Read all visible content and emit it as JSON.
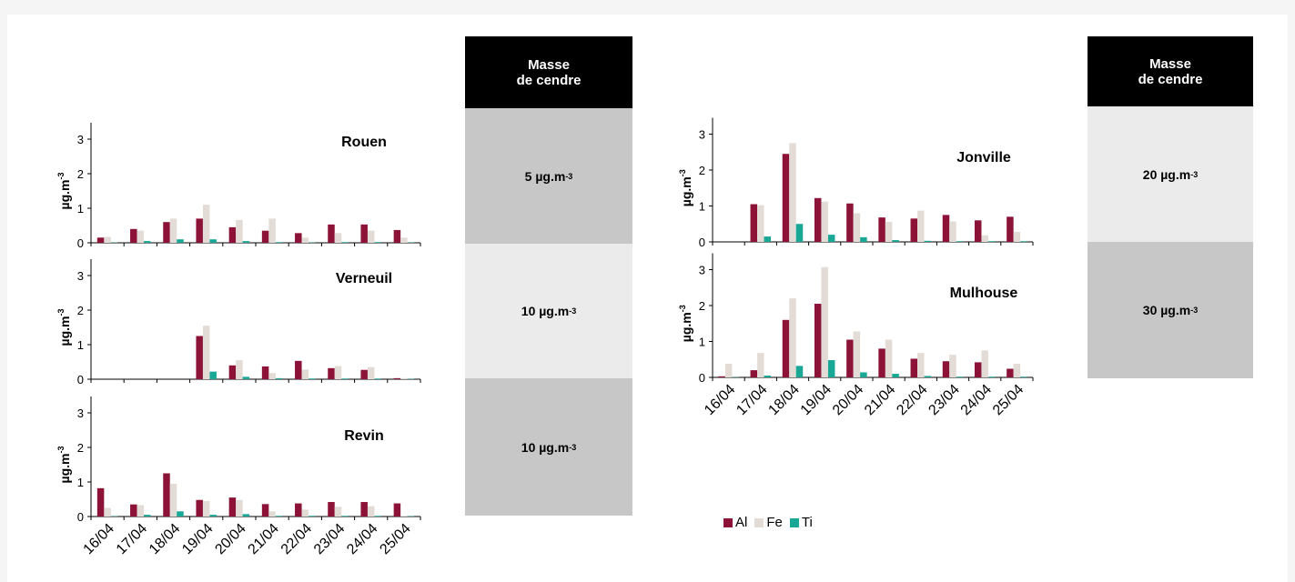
{
  "colors": {
    "Al": "#8c1237",
    "Fe": "#e3dcd6",
    "Ti": "#1aa896",
    "header_bg": "#000000",
    "dark_box": "#c7c7c7",
    "light_box": "#ebebeb"
  },
  "chart_data": {
    "type": "bar",
    "categories": [
      "16/04",
      "17/04",
      "18/04",
      "19/04",
      "20/04",
      "21/04",
      "22/04",
      "23/04",
      "24/04",
      "25/04"
    ],
    "ylabel_text": "µg.m",
    "ylabel_exp": "-3",
    "ylim": [
      0,
      3
    ],
    "yticks": [
      "0",
      "1",
      "2",
      "3"
    ],
    "legend": [
      "Al",
      "Fe",
      "Ti"
    ],
    "panels": [
      {
        "title": "Rouen",
        "series": [
          {
            "name": "Al",
            "values": [
              0.15,
              0.4,
              0.6,
              0.7,
              0.45,
              0.35,
              0.28,
              0.53,
              0.53,
              0.37
            ]
          },
          {
            "name": "Fe",
            "values": [
              0.17,
              0.35,
              0.7,
              1.1,
              0.66,
              0.7,
              0.15,
              0.28,
              0.35,
              0.15
            ]
          },
          {
            "name": "Ti",
            "values": [
              0.01,
              0.05,
              0.1,
              0.1,
              0.05,
              0.02,
              0.01,
              0.02,
              0.02,
              0.01
            ]
          }
        ]
      },
      {
        "title": "Verneuil",
        "series": [
          {
            "name": "Al",
            "values": [
              0,
              0,
              0,
              1.25,
              0.4,
              0.37,
              0.53,
              0.32,
              0.27,
              0.03
            ]
          },
          {
            "name": "Fe",
            "values": [
              0,
              0,
              0,
              1.55,
              0.55,
              0.18,
              0.28,
              0.38,
              0.35,
              0.03
            ]
          },
          {
            "name": "Ti",
            "values": [
              0,
              0,
              0,
              0.22,
              0.07,
              0.03,
              0.02,
              0.02,
              0.02,
              0.01
            ]
          }
        ]
      },
      {
        "title": "Revin",
        "series": [
          {
            "name": "Al",
            "values": [
              0.82,
              0.35,
              1.25,
              0.48,
              0.55,
              0.36,
              0.38,
              0.42,
              0.42,
              0.38
            ]
          },
          {
            "name": "Fe",
            "values": [
              0.25,
              0.33,
              0.95,
              0.45,
              0.48,
              0.15,
              0.2,
              0.28,
              0.3,
              0.02
            ]
          },
          {
            "name": "Ti",
            "values": [
              0.01,
              0.05,
              0.15,
              0.05,
              0.07,
              0.02,
              0.02,
              0.02,
              0.02,
              0.01
            ]
          }
        ]
      },
      {
        "title": "Jonville",
        "series": [
          {
            "name": "Al",
            "values": [
              0,
              1.05,
              2.45,
              1.22,
              1.07,
              0.68,
              0.65,
              0.75,
              0.6,
              0.7
            ]
          },
          {
            "name": "Fe",
            "values": [
              0,
              1.02,
              2.75,
              1.12,
              0.8,
              0.56,
              0.87,
              0.57,
              0.18,
              0.28
            ]
          },
          {
            "name": "Ti",
            "values": [
              0,
              0.15,
              0.5,
              0.2,
              0.13,
              0.05,
              0.03,
              0.02,
              0.02,
              0.02
            ]
          }
        ]
      },
      {
        "title": "Mulhouse",
        "series": [
          {
            "name": "Al",
            "values": [
              0.03,
              0.2,
              1.6,
              2.05,
              1.05,
              0.8,
              0.52,
              0.45,
              0.42,
              0.24
            ]
          },
          {
            "name": "Fe",
            "values": [
              0.38,
              0.68,
              2.2,
              3.07,
              1.28,
              1.05,
              0.68,
              0.63,
              0.75,
              0.38
            ]
          },
          {
            "name": "Ti",
            "values": [
              0.01,
              0.05,
              0.32,
              0.48,
              0.14,
              0.1,
              0.04,
              0.02,
              0.02,
              0.02
            ]
          }
        ]
      }
    ]
  },
  "side_table_left": {
    "header_line1": "Masse",
    "header_line2": "de cendre",
    "rows": [
      {
        "value": "5 µg.m",
        "exp": "-3"
      },
      {
        "value": "10 µg.m",
        "exp": "-3"
      },
      {
        "value": "10 µg.m",
        "exp": "-3"
      }
    ]
  },
  "side_table_right": {
    "header_line1": "Masse",
    "header_line2": "de cendre",
    "rows": [
      {
        "value": "20 µg.m",
        "exp": "-3"
      },
      {
        "value": "30 µg.m",
        "exp": "-3"
      }
    ]
  }
}
